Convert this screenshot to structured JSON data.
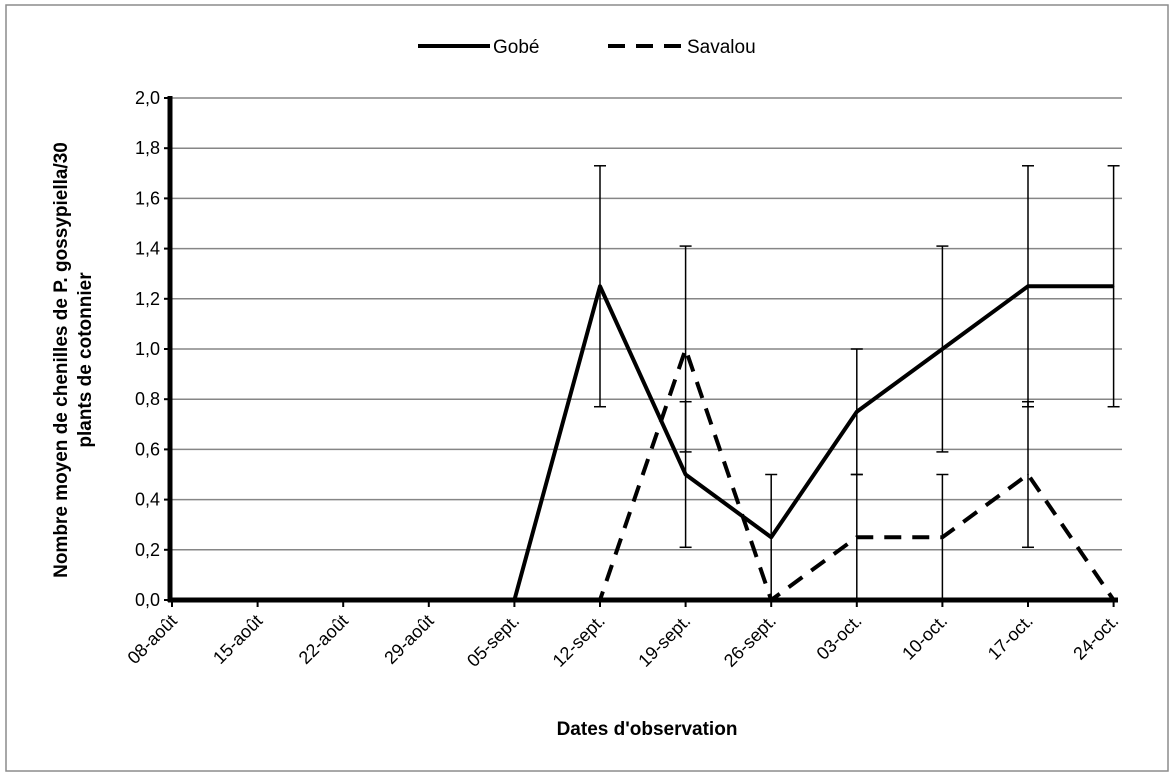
{
  "chart_data": {
    "type": "line",
    "title": "",
    "xlabel": "Dates d'observation",
    "ylabel_line1": "Nombre moyen de chenilles de P. gossypiella/30",
    "ylabel_line2": "plants de cotonnier",
    "ylim": [
      0,
      2.0
    ],
    "yticks": [
      "0,0",
      "0,2",
      "0,4",
      "0,6",
      "0,8",
      "1,0",
      "1,2",
      "1,4",
      "1,6",
      "1,8",
      "2,0"
    ],
    "categories": [
      "08-août",
      "15-août",
      "22-août",
      "29-août",
      "05-sept.",
      "12-sept.",
      "19-sept.",
      "26-sept.",
      "03-oct.",
      "10-oct.",
      "17-oct.",
      "24-oct."
    ],
    "grid": true,
    "legend_position": "top",
    "series": [
      {
        "name": "Gobé",
        "style": "solid",
        "color": "#000000",
        "values": [
          0,
          0,
          0,
          0,
          0,
          1.25,
          0.5,
          0.25,
          0.75,
          1.0,
          1.25,
          1.25
        ],
        "error": [
          0,
          0,
          0,
          0,
          0,
          0.48,
          0.29,
          0.25,
          0.25,
          0.41,
          0.48,
          0.48
        ]
      },
      {
        "name": "Savalou",
        "style": "dashed",
        "color": "#000000",
        "values": [
          0,
          0,
          0,
          0,
          0,
          0,
          1.0,
          0,
          0.25,
          0.25,
          0.5,
          0
        ],
        "error": [
          0,
          0,
          0,
          0,
          0,
          0,
          0.41,
          0,
          0.25,
          0.25,
          0.29,
          0
        ]
      }
    ]
  }
}
